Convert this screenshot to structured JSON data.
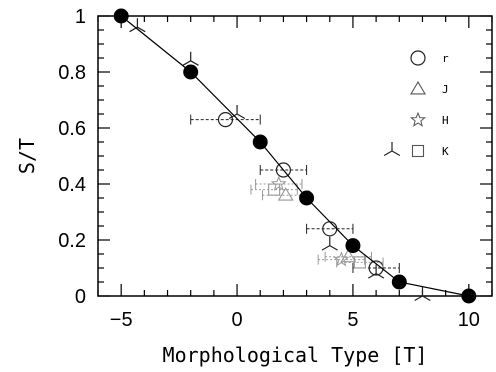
{
  "chart_data": {
    "type": "scatter",
    "title": "",
    "xlabel": "Morphological Type [T]",
    "ylabel": "S/T",
    "xlim": [
      -6,
      11
    ],
    "ylim": [
      0,
      1
    ],
    "xticks": [
      -5,
      0,
      5,
      10
    ],
    "yticks": [
      0,
      0.2,
      0.4,
      0.6,
      0.8,
      1
    ],
    "legend_position": "top-right",
    "grid": false,
    "series": [
      {
        "name": "",
        "marker": "filled-circle",
        "line": true,
        "color": "#000000",
        "x": [
          -5,
          -2,
          1,
          3,
          5,
          7,
          10
        ],
        "y": [
          1.0,
          0.8,
          0.55,
          0.35,
          0.18,
          0.05,
          0.0
        ]
      },
      {
        "name": "r",
        "marker": "open-circle",
        "color": "#222222",
        "x": [
          -0.5,
          2,
          4,
          6
        ],
        "y": [
          0.63,
          0.45,
          0.24,
          0.1
        ],
        "xerr": [
          1.5,
          1.0,
          1.0,
          1.0
        ]
      },
      {
        "name": "J",
        "marker": "triangle",
        "color": "#999999",
        "x": [
          2.1,
          4.8
        ],
        "y": [
          0.36,
          0.14
        ],
        "xerr": [
          1.0,
          1.0
        ]
      },
      {
        "name": "H",
        "marker": "star",
        "color": "#999999",
        "x": [
          1.8,
          4.5
        ],
        "y": [
          0.4,
          0.13
        ],
        "xerr": [
          1.0,
          1.0
        ]
      },
      {
        "name": "K",
        "marker": "square",
        "color": "#999999",
        "x": [
          1.6,
          5.3
        ],
        "y": [
          0.38,
          0.12
        ],
        "xerr": [
          1.0,
          1.0
        ]
      },
      {
        "name": "",
        "marker": "tripod",
        "color": "#222222",
        "x": [
          -4.3,
          -2.0,
          0.0,
          4.0,
          6.0,
          8.0
        ],
        "y": [
          0.96,
          0.84,
          0.65,
          0.18,
          0.08,
          0.0
        ]
      }
    ],
    "legend": [
      {
        "label": "r",
        "marker": "open-circle"
      },
      {
        "label": "J",
        "marker": "triangle"
      },
      {
        "label": "H",
        "marker": "star"
      },
      {
        "label": "K",
        "marker": "square",
        "prefix_marker": "tripod"
      }
    ]
  }
}
